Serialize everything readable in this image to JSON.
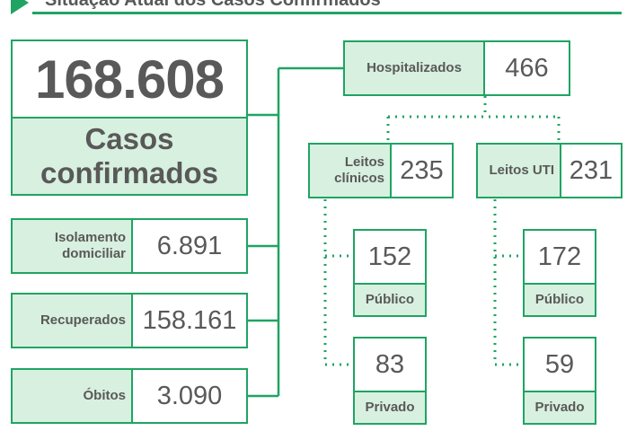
{
  "header": {
    "title": "Situação Atual dos Casos Confirmados"
  },
  "total": {
    "value": "168.608",
    "label": "Casos confirmados"
  },
  "isolamento": {
    "label": "Isolamento domiciliar",
    "value": "6.891"
  },
  "recuperados": {
    "label": "Recuperados",
    "value": "158.161"
  },
  "obitos": {
    "label": "Óbitos",
    "value": "3.090"
  },
  "hospitalizados": {
    "label": "Hospitalizados",
    "value": "466"
  },
  "leitos_clinicos": {
    "label": "Leitos clínicos",
    "value": "235",
    "publico": {
      "value": "152",
      "label": "Público"
    },
    "privado": {
      "value": "83",
      "label": "Privado"
    }
  },
  "leitos_uti": {
    "label": "Leitos UTI",
    "value": "231",
    "publico": {
      "value": "172",
      "label": "Público"
    },
    "privado": {
      "value": "59",
      "label": "Privado"
    }
  },
  "colors": {
    "accent": "#1fa463",
    "label_fill": "#d8f0df",
    "text": "#595959"
  }
}
